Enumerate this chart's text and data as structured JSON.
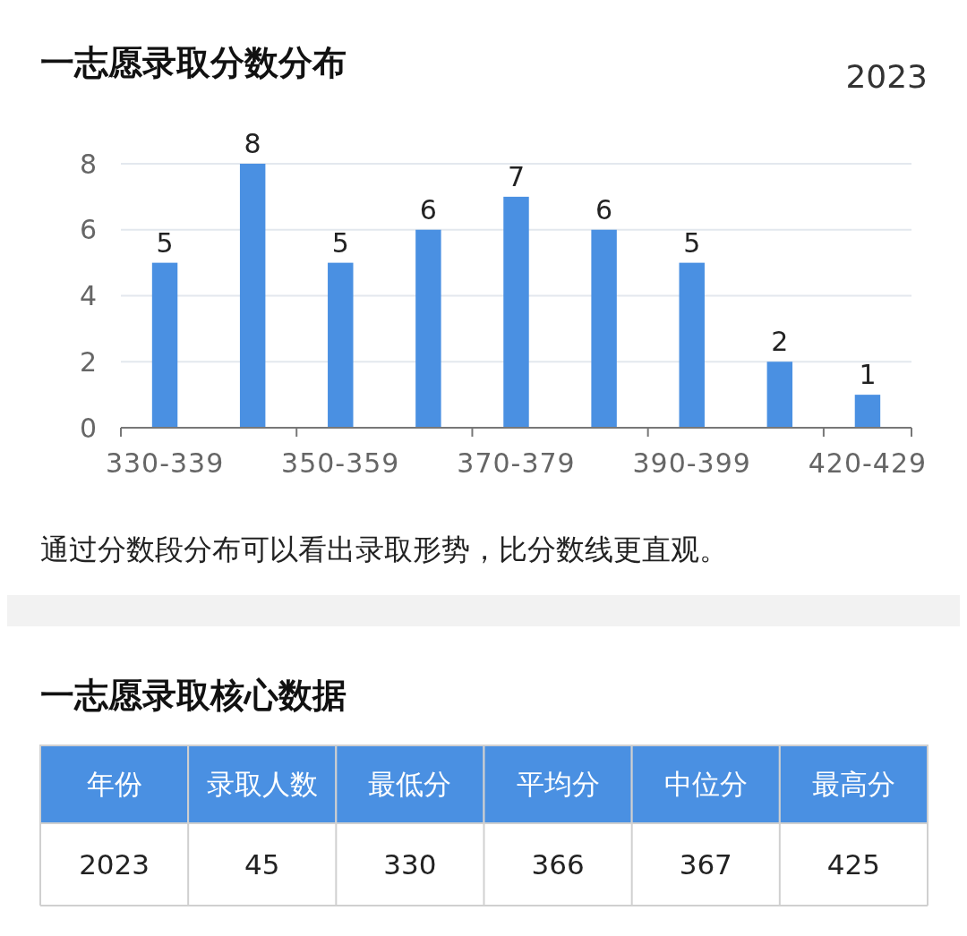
{
  "chart_data": [
    {
      "type": "bar",
      "title": "一志愿录取分数分布",
      "subtitle": "2023",
      "categories": [
        "330-339",
        null,
        "350-359",
        null,
        "370-379",
        null,
        "390-399",
        null,
        "420-429"
      ],
      "values": [
        5,
        8,
        5,
        6,
        7,
        6,
        5,
        2,
        1
      ],
      "color": "#4a90e2",
      "ylim": [
        0,
        8
      ],
      "yticks": [
        0,
        2,
        4,
        6,
        8
      ],
      "grid": "y",
      "data_labels": true,
      "annotations": [
        "通过分数段分布可以看出录取形势，比分数线更直观。"
      ]
    },
    {
      "type": "other",
      "title": "一志愿录取核心数据",
      "categories": [
        "年份",
        "录取人数",
        "最低分",
        "平均分",
        "中位分",
        "最高分"
      ],
      "values": [
        2023,
        45,
        330,
        366,
        367,
        425
      ],
      "color": "#4a90e2",
      "data_labels": true
    }
  ]
}
